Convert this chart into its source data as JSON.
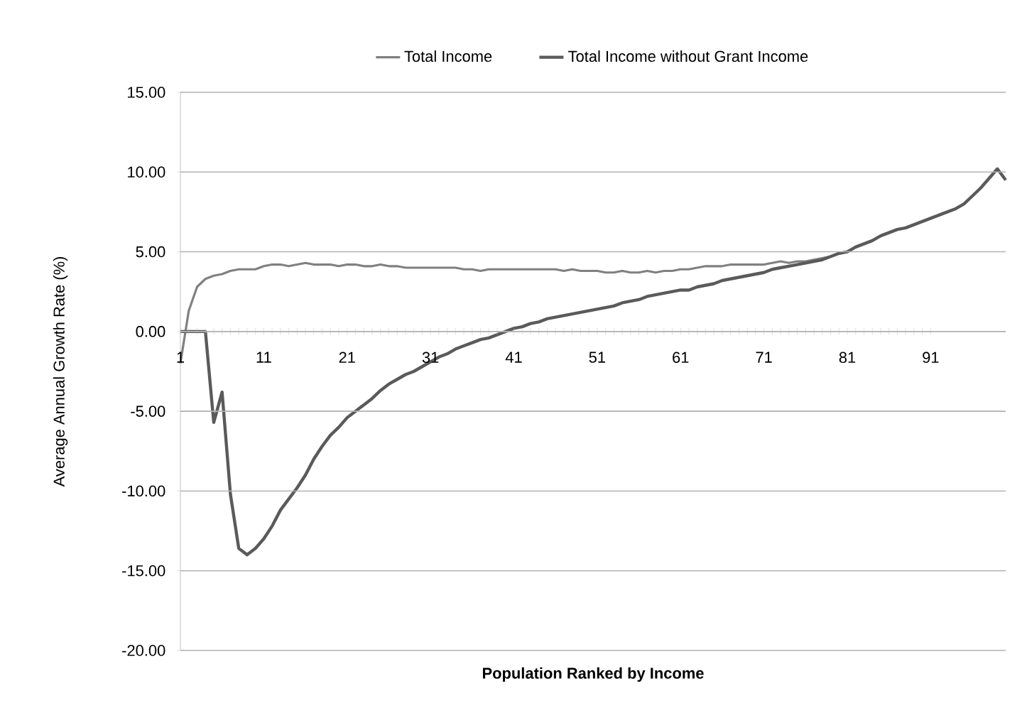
{
  "chart_data": {
    "type": "line",
    "xlabel": "Population Ranked by Income",
    "ylabel": "Average Annual Growth Rate (%)",
    "x": [
      1,
      2,
      3,
      4,
      5,
      6,
      7,
      8,
      9,
      10,
      11,
      12,
      13,
      14,
      15,
      16,
      17,
      18,
      19,
      20,
      21,
      22,
      23,
      24,
      25,
      26,
      27,
      28,
      29,
      30,
      31,
      32,
      33,
      34,
      35,
      36,
      37,
      38,
      39,
      40,
      41,
      42,
      43,
      44,
      45,
      46,
      47,
      48,
      49,
      50,
      51,
      52,
      53,
      54,
      55,
      56,
      57,
      58,
      59,
      60,
      61,
      62,
      63,
      64,
      65,
      66,
      67,
      68,
      69,
      70,
      71,
      72,
      73,
      74,
      75,
      76,
      77,
      78,
      79,
      80,
      81,
      82,
      83,
      84,
      85,
      86,
      87,
      88,
      89,
      90,
      91,
      92,
      93,
      94,
      95,
      96,
      97,
      98,
      99,
      100
    ],
    "series": [
      {
        "name": "Total Income",
        "color": "#808080",
        "values": [
          -2.0,
          1.3,
          2.8,
          3.3,
          3.5,
          3.6,
          3.8,
          3.9,
          3.9,
          3.9,
          4.1,
          4.2,
          4.2,
          4.1,
          4.2,
          4.3,
          4.2,
          4.2,
          4.2,
          4.1,
          4.2,
          4.2,
          4.1,
          4.1,
          4.2,
          4.1,
          4.1,
          4.0,
          4.0,
          4.0,
          4.0,
          4.0,
          4.0,
          4.0,
          3.9,
          3.9,
          3.8,
          3.9,
          3.9,
          3.9,
          3.9,
          3.9,
          3.9,
          3.9,
          3.9,
          3.9,
          3.8,
          3.9,
          3.8,
          3.8,
          3.8,
          3.7,
          3.7,
          3.8,
          3.7,
          3.7,
          3.8,
          3.7,
          3.8,
          3.8,
          3.9,
          3.9,
          4.0,
          4.1,
          4.1,
          4.1,
          4.2,
          4.2,
          4.2,
          4.2,
          4.2,
          4.3,
          4.4,
          4.3,
          4.4,
          4.4,
          4.5,
          4.6,
          4.7,
          4.9,
          5.0,
          5.3,
          5.5,
          5.7,
          6.0,
          6.2,
          6.4,
          6.5,
          6.7,
          6.9,
          7.1,
          7.3,
          7.5,
          7.7,
          8.0,
          8.5,
          9.0,
          9.6,
          10.2,
          9.5
        ]
      },
      {
        "name": "Total Income without Grant Income",
        "color": "#5a5a5a",
        "values": [
          0.0,
          0.0,
          0.0,
          0.0,
          -5.7,
          -3.8,
          -10.2,
          -13.6,
          -14.0,
          -13.6,
          -13.0,
          -12.2,
          -11.2,
          -10.5,
          -9.8,
          -9.0,
          -8.0,
          -7.2,
          -6.5,
          -6.0,
          -5.4,
          -5.0,
          -4.6,
          -4.2,
          -3.7,
          -3.3,
          -3.0,
          -2.7,
          -2.5,
          -2.2,
          -1.9,
          -1.6,
          -1.4,
          -1.1,
          -0.9,
          -0.7,
          -0.5,
          -0.4,
          -0.2,
          0.0,
          0.2,
          0.3,
          0.5,
          0.6,
          0.8,
          0.9,
          1.0,
          1.1,
          1.2,
          1.3,
          1.4,
          1.5,
          1.6,
          1.8,
          1.9,
          2.0,
          2.2,
          2.3,
          2.4,
          2.5,
          2.6,
          2.6,
          2.8,
          2.9,
          3.0,
          3.2,
          3.3,
          3.4,
          3.5,
          3.6,
          3.7,
          3.9,
          4.0,
          4.1,
          4.2,
          4.3,
          4.4,
          4.5,
          4.7,
          4.9,
          5.0,
          5.3,
          5.5,
          5.7,
          6.0,
          6.2,
          6.4,
          6.5,
          6.7,
          6.9,
          7.1,
          7.3,
          7.5,
          7.7,
          8.0,
          8.5,
          9.0,
          9.6,
          10.2,
          9.5
        ]
      }
    ],
    "xlim": [
      1,
      100
    ],
    "xticks": [
      1,
      11,
      21,
      31,
      41,
      51,
      61,
      71,
      81,
      91
    ],
    "ylim": [
      -20,
      15
    ],
    "yticks": [
      {
        "value": -20,
        "label": "-20.00"
      },
      {
        "value": -15,
        "label": "-15.00"
      },
      {
        "value": -10,
        "label": "-10.00"
      },
      {
        "value": -5,
        "label": "-5.00"
      },
      {
        "value": 0,
        "label": "0.00"
      },
      {
        "value": 5,
        "label": "5.00"
      },
      {
        "value": 10,
        "label": "10.00"
      },
      {
        "value": 15,
        "label": "15.00"
      }
    ],
    "grid": "y",
    "legend": "top",
    "marker": "none",
    "line_style": "solid"
  }
}
